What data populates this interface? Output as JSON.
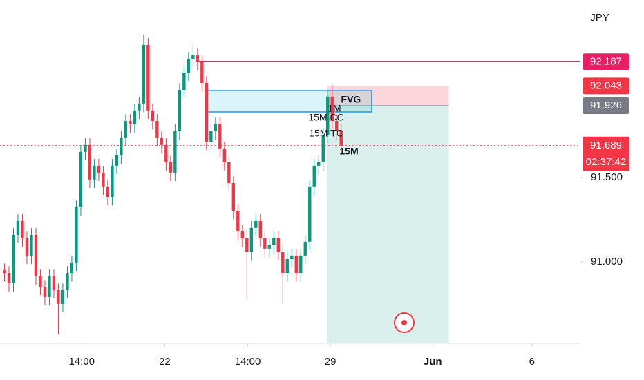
{
  "chart_data": {
    "type": "candlestick",
    "currency": "JPY",
    "ylim": [
      90.516,
      92.553
    ],
    "yticks": [
      {
        "value": 91.5,
        "label": "91.500"
      },
      {
        "value": 91.0,
        "label": "91.000"
      }
    ],
    "xlim": [
      -1,
      128.3
    ],
    "xticks": [
      {
        "value": 17.2,
        "label": "14:00"
      },
      {
        "value": 35.7,
        "label": "22"
      },
      {
        "value": 54.2,
        "label": "14:00"
      },
      {
        "value": 72.6,
        "label": "29"
      },
      {
        "value": 95.4,
        "label": "Jun"
      },
      {
        "value": 117.5,
        "label": "6"
      }
    ],
    "up_color": "#089981",
    "down_color": "#f23645",
    "open": [
      90.95,
      90.934,
      90.873,
      91.16,
      91.242,
      91.139,
      91.037,
      91.16,
      90.914,
      90.852,
      90.791,
      90.914,
      90.832,
      90.75,
      90.832,
      90.934,
      90.996,
      91.324,
      91.652,
      91.693,
      91.488,
      91.57,
      91.529,
      91.447,
      91.385,
      91.57,
      91.631,
      91.734,
      91.836,
      91.816,
      91.898,
      91.939,
      92.287,
      91.898,
      91.836,
      91.734,
      91.693,
      91.59,
      91.529,
      91.775,
      92.02,
      92.123,
      92.205,
      92.225,
      92.184,
      92.061,
      91.713,
      91.775,
      91.816,
      91.672,
      91.59,
      91.467,
      91.303,
      91.18,
      91.139,
      91.057,
      91.201,
      91.242,
      91.139,
      91.078,
      91.098,
      91.139,
      91.057,
      90.934,
      91.016,
      91.037,
      90.934,
      91.037,
      91.119,
      91.447,
      91.57,
      91.59,
      91.754,
      91.98,
      91.836,
      91.775
    ],
    "high": [
      90.99,
      90.974,
      91.2,
      91.282,
      91.282,
      91.179,
      91.2,
      91.2,
      90.954,
      90.892,
      90.954,
      90.954,
      90.872,
      90.872,
      90.974,
      91.036,
      91.364,
      91.692,
      91.733,
      91.733,
      91.61,
      91.61,
      91.569,
      91.487,
      91.61,
      91.671,
      91.774,
      91.876,
      91.876,
      91.938,
      91.979,
      92.35,
      92.327,
      91.938,
      91.876,
      91.774,
      91.733,
      91.63,
      91.815,
      92.06,
      92.163,
      92.245,
      92.3,
      92.265,
      92.224,
      92.101,
      91.815,
      91.856,
      91.856,
      91.712,
      91.63,
      91.507,
      91.343,
      91.22,
      91.179,
      91.241,
      91.282,
      91.282,
      91.179,
      91.138,
      91.179,
      91.179,
      91.097,
      91.056,
      91.077,
      91.077,
      91.077,
      91.159,
      91.487,
      91.61,
      91.63,
      91.794,
      92.02,
      92.05,
      91.876,
      91.815
    ],
    "low": [
      90.884,
      90.823,
      90.823,
      91.11,
      91.089,
      90.987,
      90.987,
      90.864,
      90.802,
      90.741,
      90.741,
      90.782,
      90.57,
      90.7,
      90.782,
      90.884,
      90.946,
      91.274,
      91.602,
      91.438,
      91.438,
      91.479,
      91.397,
      91.335,
      91.335,
      91.52,
      91.581,
      91.684,
      91.766,
      91.766,
      91.848,
      91.889,
      91.848,
      91.786,
      91.684,
      91.643,
      91.54,
      91.479,
      91.479,
      91.725,
      91.97,
      92.073,
      92.155,
      92.134,
      92.011,
      91.663,
      91.663,
      91.725,
      91.622,
      91.54,
      91.417,
      91.253,
      91.13,
      91.089,
      90.78,
      91.007,
      91.151,
      91.089,
      91.028,
      91.028,
      91.048,
      91.007,
      90.75,
      90.884,
      90.966,
      90.884,
      90.884,
      90.987,
      91.069,
      91.397,
      91.52,
      91.54,
      91.704,
      91.786,
      91.725,
      91.639
    ],
    "close": [
      90.934,
      90.873,
      91.16,
      91.242,
      91.139,
      91.037,
      91.16,
      90.914,
      90.852,
      90.791,
      90.914,
      90.832,
      90.75,
      90.832,
      90.934,
      90.996,
      91.324,
      91.652,
      91.693,
      91.488,
      91.57,
      91.529,
      91.447,
      91.385,
      91.57,
      91.631,
      91.734,
      91.836,
      91.816,
      91.898,
      91.939,
      92.287,
      91.898,
      91.836,
      91.734,
      91.693,
      91.59,
      91.529,
      91.775,
      92.02,
      92.123,
      92.205,
      92.225,
      92.184,
      92.061,
      91.713,
      91.775,
      91.816,
      91.672,
      91.59,
      91.467,
      91.303,
      91.18,
      91.139,
      91.057,
      91.201,
      91.242,
      91.139,
      91.078,
      91.098,
      91.139,
      91.057,
      90.934,
      91.016,
      91.037,
      90.934,
      91.037,
      91.119,
      91.447,
      91.57,
      91.59,
      91.754,
      91.98,
      91.836,
      91.775,
      91.689
    ],
    "resistance_line": {
      "value": 92.187,
      "x_start": 43,
      "color": "#e91e63"
    },
    "fvg": {
      "x": [
        44.9,
        81.8
      ],
      "bottom": 91.889,
      "top": 92.016,
      "label": "FVG"
    },
    "position": {
      "x": [
        71.8,
        99.0
      ],
      "entry": 91.926,
      "stop": 92.043,
      "target": 90.516
    },
    "last_price": {
      "value": 91.689,
      "countdown": "02:37:42"
    },
    "annotations": [
      "1M",
      "15M CC",
      "15M TC",
      "15M"
    ]
  }
}
